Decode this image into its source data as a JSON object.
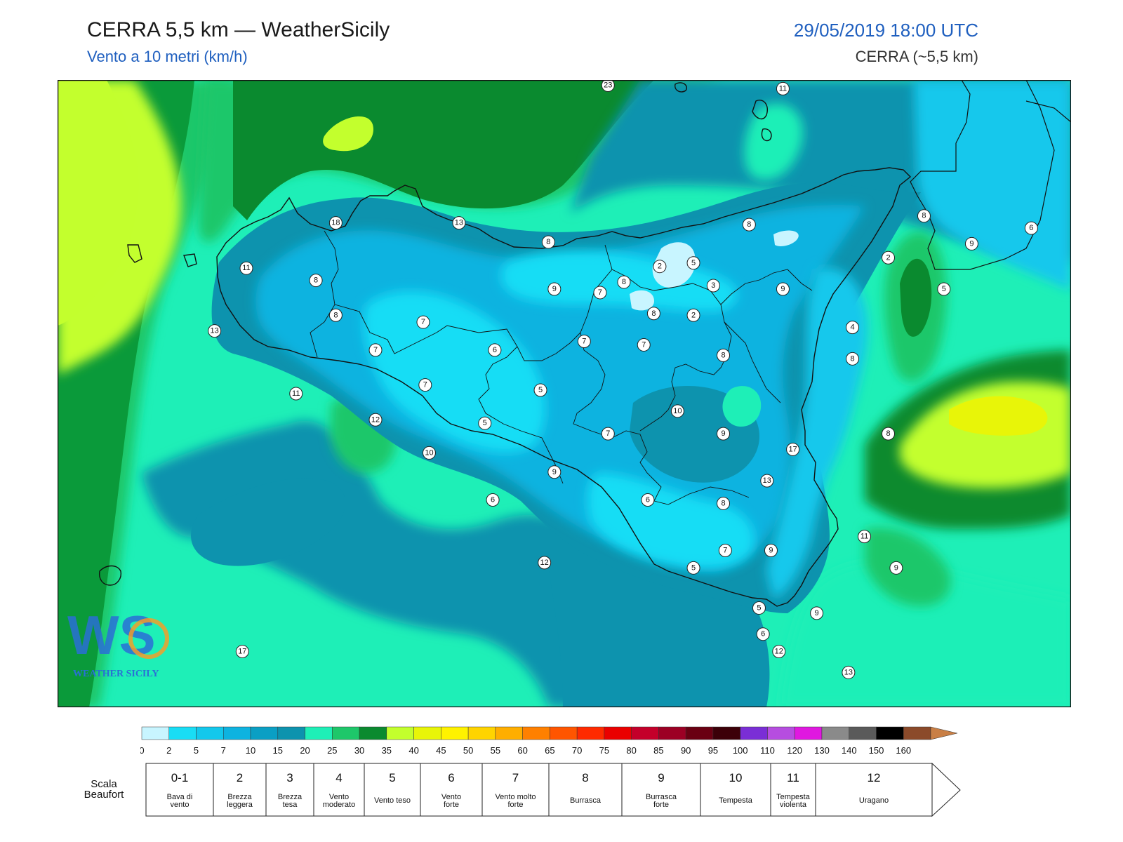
{
  "header": {
    "title": "CERRA 5,5 km — WeatherSicily",
    "subtitle": "Vento a 10 metri (km/h)",
    "datetime": "29/05/2019 18:00 UTC",
    "model": "CERRA (~5,5 km)"
  },
  "logo": {
    "text": "WEATHER SICILY",
    "letters": "WS"
  },
  "stations": [
    {
      "label": "23",
      "lon": 14.07,
      "lat": 38.97
    },
    {
      "label": "11",
      "lon": 14.95,
      "lat": 38.95
    },
    {
      "label": "8",
      "lon": 15.66,
      "lat": 38.22
    },
    {
      "label": "6",
      "lon": 16.2,
      "lat": 38.15
    },
    {
      "label": "18",
      "lon": 12.7,
      "lat": 38.18
    },
    {
      "label": "13",
      "lon": 13.32,
      "lat": 38.18
    },
    {
      "label": "8",
      "lon": 13.77,
      "lat": 38.07
    },
    {
      "label": "8",
      "lon": 14.78,
      "lat": 38.17
    },
    {
      "label": "9",
      "lon": 15.9,
      "lat": 38.06
    },
    {
      "label": "2",
      "lon": 15.48,
      "lat": 37.98
    },
    {
      "label": "11",
      "lon": 12.25,
      "lat": 37.92
    },
    {
      "label": "8",
      "lon": 12.6,
      "lat": 37.85
    },
    {
      "label": "9",
      "lon": 13.8,
      "lat": 37.8
    },
    {
      "label": "8",
      "lon": 14.15,
      "lat": 37.84
    },
    {
      "label": "5",
      "lon": 14.5,
      "lat": 37.95
    },
    {
      "label": "7",
      "lon": 14.03,
      "lat": 37.78
    },
    {
      "label": "2",
      "lon": 14.33,
      "lat": 37.93
    },
    {
      "label": "3",
      "lon": 14.6,
      "lat": 37.82
    },
    {
      "label": "9",
      "lon": 14.95,
      "lat": 37.8
    },
    {
      "label": "5",
      "lon": 15.76,
      "lat": 37.8
    },
    {
      "label": "8",
      "lon": 12.7,
      "lat": 37.65
    },
    {
      "label": "13",
      "lon": 12.09,
      "lat": 37.56
    },
    {
      "label": "7",
      "lon": 13.14,
      "lat": 37.61
    },
    {
      "label": "8",
      "lon": 14.3,
      "lat": 37.66
    },
    {
      "label": "7",
      "lon": 13.95,
      "lat": 37.5
    },
    {
      "label": "2",
      "lon": 14.5,
      "lat": 37.65
    },
    {
      "label": "4",
      "lon": 15.3,
      "lat": 37.58
    },
    {
      "label": "7",
      "lon": 12.9,
      "lat": 37.45
    },
    {
      "label": "6",
      "lon": 13.5,
      "lat": 37.45
    },
    {
      "label": "7",
      "lon": 14.25,
      "lat": 37.48
    },
    {
      "label": "8",
      "lon": 14.65,
      "lat": 37.42
    },
    {
      "label": "8",
      "lon": 15.3,
      "lat": 37.4
    },
    {
      "label": "11",
      "lon": 12.5,
      "lat": 37.2
    },
    {
      "label": "7",
      "lon": 13.15,
      "lat": 37.25
    },
    {
      "label": "5",
      "lon": 13.73,
      "lat": 37.22
    },
    {
      "label": "10",
      "lon": 14.42,
      "lat": 37.1
    },
    {
      "label": "12",
      "lon": 12.9,
      "lat": 37.05
    },
    {
      "label": "5",
      "lon": 13.45,
      "lat": 37.03
    },
    {
      "label": "7",
      "lon": 14.07,
      "lat": 36.97
    },
    {
      "label": "9",
      "lon": 14.65,
      "lat": 36.97
    },
    {
      "label": "8",
      "lon": 15.48,
      "lat": 36.97
    },
    {
      "label": "17",
      "lon": 15.0,
      "lat": 36.88
    },
    {
      "label": "10",
      "lon": 13.17,
      "lat": 36.86
    },
    {
      "label": "9",
      "lon": 13.8,
      "lat": 36.75
    },
    {
      "label": "13",
      "lon": 14.87,
      "lat": 36.7
    },
    {
      "label": "6",
      "lon": 13.49,
      "lat": 36.59
    },
    {
      "label": "6",
      "lon": 14.27,
      "lat": 36.59
    },
    {
      "label": "8",
      "lon": 14.65,
      "lat": 36.57
    },
    {
      "label": "11",
      "lon": 15.36,
      "lat": 36.38
    },
    {
      "label": "7",
      "lon": 14.66,
      "lat": 36.3
    },
    {
      "label": "9",
      "lon": 14.89,
      "lat": 36.3
    },
    {
      "label": "12",
      "lon": 13.75,
      "lat": 36.23
    },
    {
      "label": "5",
      "lon": 14.5,
      "lat": 36.2
    },
    {
      "label": "9",
      "lon": 15.52,
      "lat": 36.2
    },
    {
      "label": "5",
      "lon": 14.83,
      "lat": 35.97
    },
    {
      "label": "9",
      "lon": 15.12,
      "lat": 35.94
    },
    {
      "label": "6",
      "lon": 14.85,
      "lat": 35.82
    },
    {
      "label": "17",
      "lon": 12.23,
      "lat": 35.72
    },
    {
      "label": "12",
      "lon": 14.93,
      "lat": 35.72
    },
    {
      "label": "13",
      "lon": 15.28,
      "lat": 35.6
    }
  ],
  "colorscale": {
    "ticks": [
      "0",
      "2",
      "5",
      "7",
      "10",
      "15",
      "20",
      "25",
      "30",
      "35",
      "40",
      "45",
      "50",
      "55",
      "60",
      "65",
      "70",
      "75",
      "80",
      "85",
      "90",
      "95",
      "100",
      "110",
      "120",
      "130",
      "140",
      "150",
      "160"
    ],
    "colors": [
      "#c8f5ff",
      "#19ddf5",
      "#13c8ec",
      "#0eb3e0",
      "#0a9fc4",
      "#0d93ae",
      "#1eefb7",
      "#1ec76a",
      "#0a8a2f",
      "#c3ff2d",
      "#e8f508",
      "#fff200",
      "#ffd400",
      "#ffae00",
      "#ff8000",
      "#ff5500",
      "#ff2a00",
      "#ea0000",
      "#c4002a",
      "#9c0024",
      "#6a0012",
      "#3c0008",
      "#7a2ed6",
      "#b64de0",
      "#e018e0",
      "#8a8a8a",
      "#5a5a5a",
      "#000000",
      "#8b4a2a",
      "#c97f45"
    ]
  },
  "beaufort": {
    "caption": "Scala Beaufort",
    "classes": [
      {
        "num": "0-1",
        "desc": [
          "Bava di",
          "vento"
        ]
      },
      {
        "num": "2",
        "desc": [
          "Brezza",
          "leggera"
        ]
      },
      {
        "num": "3",
        "desc": [
          "Brezza",
          "tesa"
        ]
      },
      {
        "num": "4",
        "desc": [
          "Vento",
          "moderato"
        ]
      },
      {
        "num": "5",
        "desc": [
          "Vento teso"
        ]
      },
      {
        "num": "6",
        "desc": [
          "Vento",
          "forte"
        ]
      },
      {
        "num": "7",
        "desc": [
          "Vento molto",
          "forte"
        ]
      },
      {
        "num": "8",
        "desc": [
          "Burrasca"
        ]
      },
      {
        "num": "9",
        "desc": [
          "Burrasca",
          "forte"
        ]
      },
      {
        "num": "10",
        "desc": [
          "Tempesta"
        ]
      },
      {
        "num": "11",
        "desc": [
          "Tempesta",
          "violenta"
        ]
      },
      {
        "num": "12",
        "desc": [
          "Uragano"
        ]
      }
    ]
  }
}
